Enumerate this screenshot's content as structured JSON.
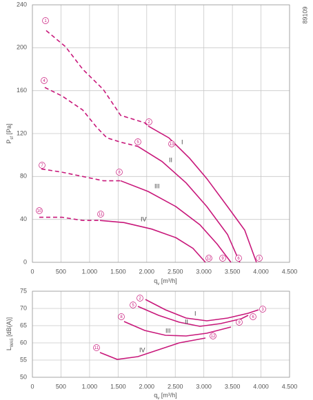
{
  "label": "89109",
  "chart_data": [
    {
      "type": "line",
      "xlabel": [
        "q",
        "v",
        " [m³/h]"
      ],
      "ylabel": [
        "P",
        "sf",
        " [Pa]"
      ],
      "xlim": [
        0,
        4500
      ],
      "ylim": [
        0,
        240
      ],
      "xticks": [
        0,
        500,
        {
          "value": 1000,
          "label": "1.000"
        },
        {
          "value": 1500,
          "label": "1.500"
        },
        {
          "value": 2000,
          "label": "2.000"
        },
        {
          "value": 2500,
          "label": "2.500"
        },
        {
          "value": 3000,
          "label": "3.000"
        },
        {
          "value": 3500,
          "label": "3.500"
        },
        {
          "value": 4000,
          "label": "4.000"
        },
        {
          "value": 4500,
          "label": "4.500"
        }
      ],
      "yticks": [
        0,
        40,
        80,
        120,
        160,
        200,
        240
      ],
      "grid": true,
      "series": [
        {
          "color": "#c8177a",
          "line_style": "dashed",
          "x": [
            241,
            579,
            880,
            1242,
            1544,
            1966,
            2026
          ],
          "values": [
            216,
            201,
            180,
            161,
            137,
            130,
            127
          ]
        },
        {
          "name": "I",
          "color": "#c8177a",
          "line_style": "solid",
          "x": [
            2026,
            2388,
            2750,
            3052,
            3414,
            3715,
            3920
          ],
          "values": [
            127,
            116,
            97,
            78,
            52,
            30,
            0
          ]
        },
        {
          "color": "#c8177a",
          "line_style": "dashed",
          "x": [
            217,
            519,
            880,
            1122,
            1303,
            1544,
            1846
          ],
          "values": [
            163,
            155,
            142,
            126,
            116,
            112,
            108
          ]
        },
        {
          "name": "II",
          "color": "#c8177a",
          "line_style": "solid",
          "x": [
            1846,
            2268,
            2690,
            3052,
            3414,
            3595,
            3630
          ],
          "values": [
            108,
            94,
            74,
            52,
            26,
            4,
            0
          ]
        },
        {
          "color": "#c8177a",
          "line_style": "dashed",
          "x": [
            157,
            519,
            880,
            1242,
            1544
          ],
          "values": [
            87,
            84,
            80,
            76,
            76
          ]
        },
        {
          "name": "III",
          "color": "#c8177a",
          "line_style": "solid",
          "x": [
            1544,
            2026,
            2509,
            2931,
            3233,
            3474
          ],
          "values": [
            76,
            66,
            52,
            35,
            17,
            0
          ]
        },
        {
          "color": "#c8177a",
          "line_style": "dashed",
          "x": [
            120,
            519,
            880,
            1182
          ],
          "values": [
            42,
            42,
            39,
            39
          ]
        },
        {
          "name": "IV",
          "color": "#c8177a",
          "line_style": "solid",
          "x": [
            1182,
            1604,
            2087,
            2509,
            2810,
            3028
          ],
          "values": [
            39,
            37,
            31,
            23,
            13,
            0
          ]
        }
      ],
      "markers": [
        "1",
        "2",
        "3",
        "4",
        "5",
        "6",
        "7",
        "8",
        "9",
        "10",
        "11",
        "12",
        "13"
      ]
    },
    {
      "type": "line",
      "xlabel": [
        "q",
        "v",
        " [m³/h]"
      ],
      "ylabel": [
        "L",
        "WA5",
        " [dB(A)]"
      ],
      "xlim": [
        0,
        4500
      ],
      "ylim": [
        50,
        75
      ],
      "xticks": [
        0,
        500,
        {
          "value": 1000,
          "label": "1.000"
        },
        {
          "value": 1500,
          "label": "1.500"
        },
        {
          "value": 2000,
          "label": "2.000"
        },
        {
          "value": 2500,
          "label": "2.500"
        },
        {
          "value": 3000,
          "label": "3.000"
        },
        {
          "value": 3500,
          "label": "3.500"
        },
        {
          "value": 4000,
          "label": "4.000"
        },
        {
          "value": 4500,
          "label": "4.500"
        }
      ],
      "yticks": [
        50,
        55,
        60,
        65,
        70,
        75
      ],
      "grid": true,
      "series": [
        {
          "name": "I",
          "color": "#c8177a",
          "line_style": "solid",
          "x": [
            1978,
            2328,
            2690,
            3052,
            3414,
            3776,
            3957
          ],
          "values": [
            72.6,
            69.6,
            67.2,
            66.4,
            67.2,
            68.6,
            69.6
          ]
        },
        {
          "name": "II",
          "color": "#c8177a",
          "line_style": "solid",
          "x": [
            1846,
            2208,
            2570,
            2931,
            3293,
            3655,
            3776
          ],
          "values": [
            70.6,
            68,
            66,
            64.8,
            65.6,
            67,
            68
          ]
        },
        {
          "name": "III",
          "color": "#c8177a",
          "line_style": "solid",
          "x": [
            1604,
            1966,
            2328,
            2690,
            3052,
            3474
          ],
          "values": [
            66.2,
            63.6,
            62.2,
            62,
            62.8,
            64.6
          ]
        },
        {
          "name": "IV",
          "color": "#c8177a",
          "line_style": "solid",
          "x": [
            1182,
            1484,
            1846,
            2208,
            2570,
            3028
          ],
          "values": [
            57.2,
            55.2,
            56,
            58,
            60,
            61.4
          ]
        }
      ],
      "markers": [
        "2",
        "3",
        "5",
        "6",
        "8",
        "9",
        "11",
        "12"
      ]
    }
  ]
}
